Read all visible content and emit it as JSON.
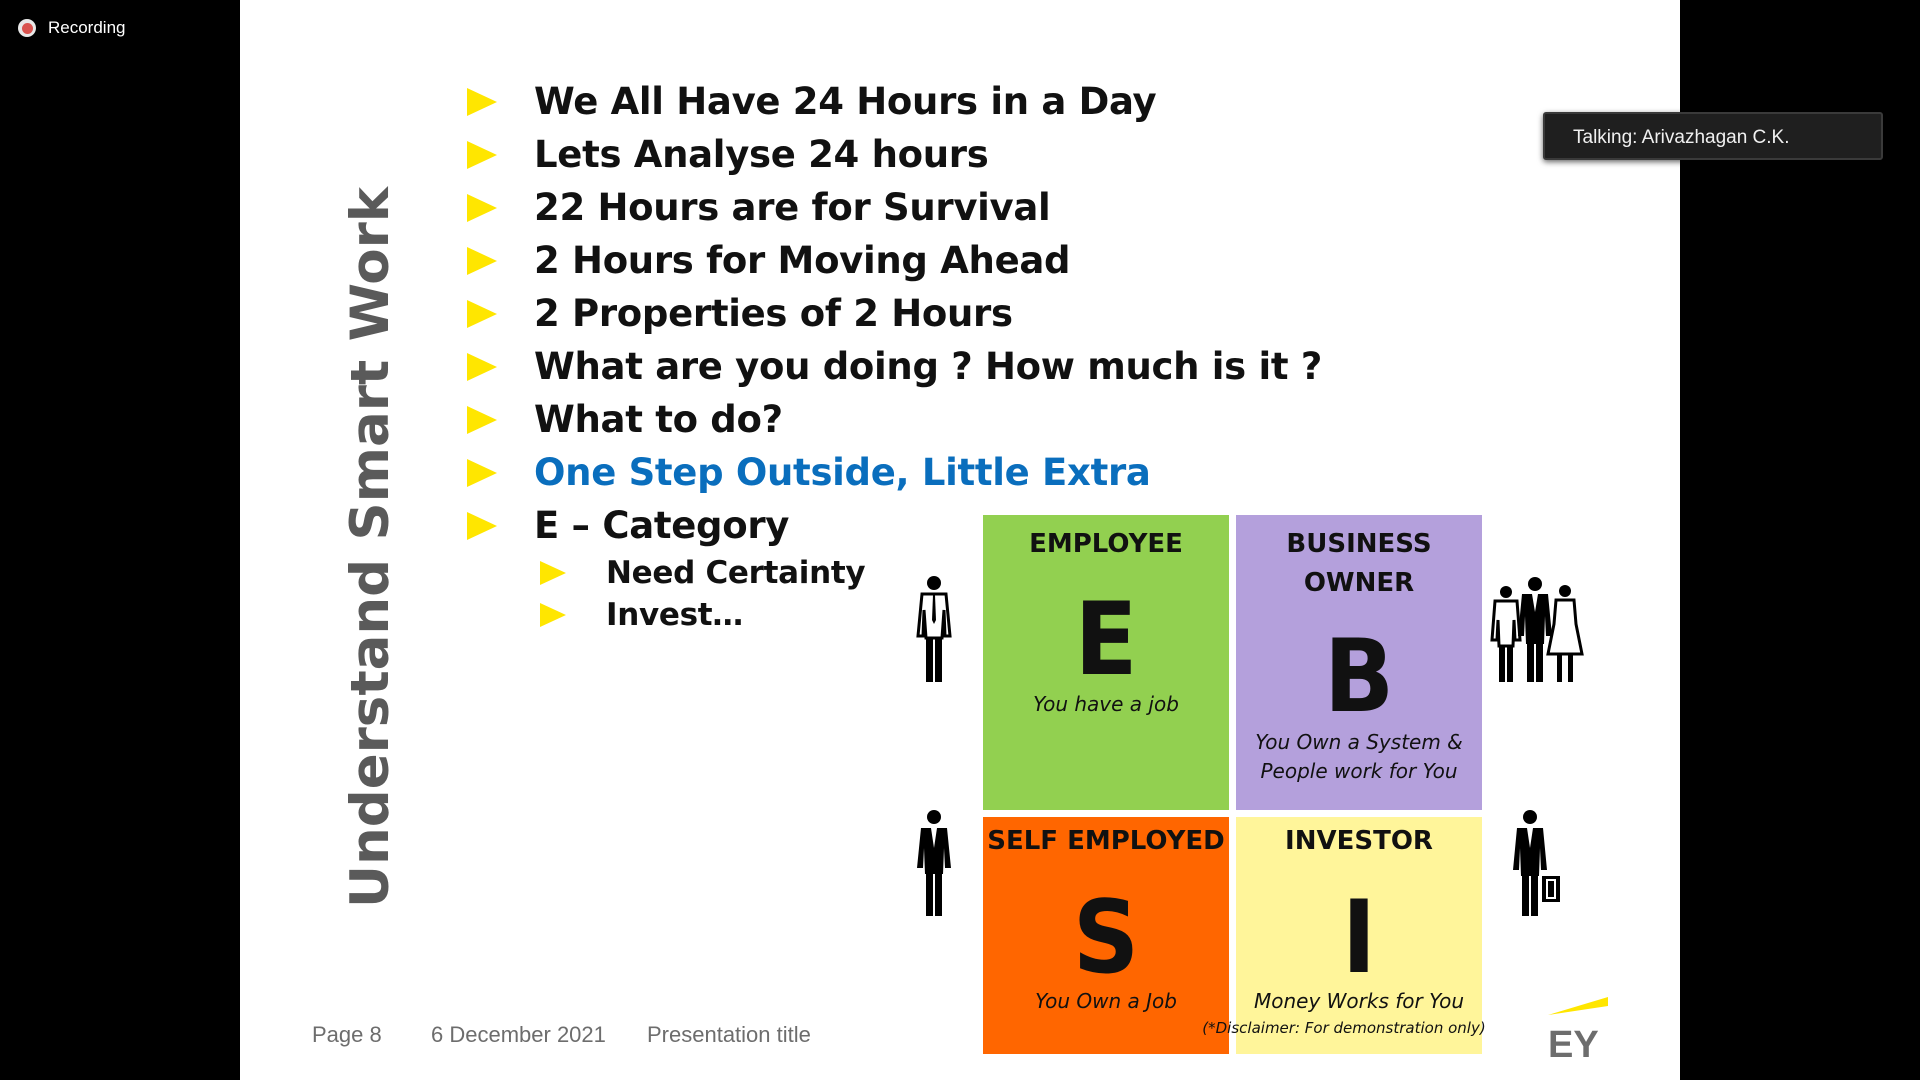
{
  "recording": {
    "label": "Recording"
  },
  "slide": {
    "side_title": "Understand Smart Work",
    "bullets": [
      "We All Have 24 Hours in a Day",
      "Lets Analyse 24 hours",
      "22 Hours are for Survival",
      "2 Hours for Moving Ahead",
      "2 Properties of 2 Hours",
      "What are you doing ? How much is it ?",
      "What to do?",
      "One Step Outside, Little Extra",
      "E – Category"
    ],
    "sub_bullets": [
      "Need Certainty",
      "Invest…"
    ],
    "quadrants": {
      "employee": {
        "title": "EMPLOYEE",
        "letter": "E",
        "subtitle": "You have a job",
        "color": "#92d050"
      },
      "business": {
        "title_line1": "BUSINESS",
        "title_line2": "OWNER",
        "letter": "B",
        "subtitle_line1": "You Own a System &",
        "subtitle_line2": "People work for You",
        "color": "#b4a0dc"
      },
      "self": {
        "title": "SELF EMPLOYED",
        "letter": "S",
        "subtitle": "You Own a Job",
        "color": "#ff6600"
      },
      "investor": {
        "title": "INVESTOR",
        "letter": "I",
        "subtitle": "Money Works for You",
        "color": "#fff59a"
      }
    },
    "disclaimer": "(*Disclaimer: For demonstration only)",
    "footer": {
      "page": "Page 8",
      "date": "6 December 2021",
      "title": "Presentation title"
    },
    "logo_text": "EY",
    "accent_color": "#ffe600",
    "highlight_color": "#0a6ebd"
  },
  "talking": {
    "label": "Talking: Arivazhagan C.K."
  }
}
